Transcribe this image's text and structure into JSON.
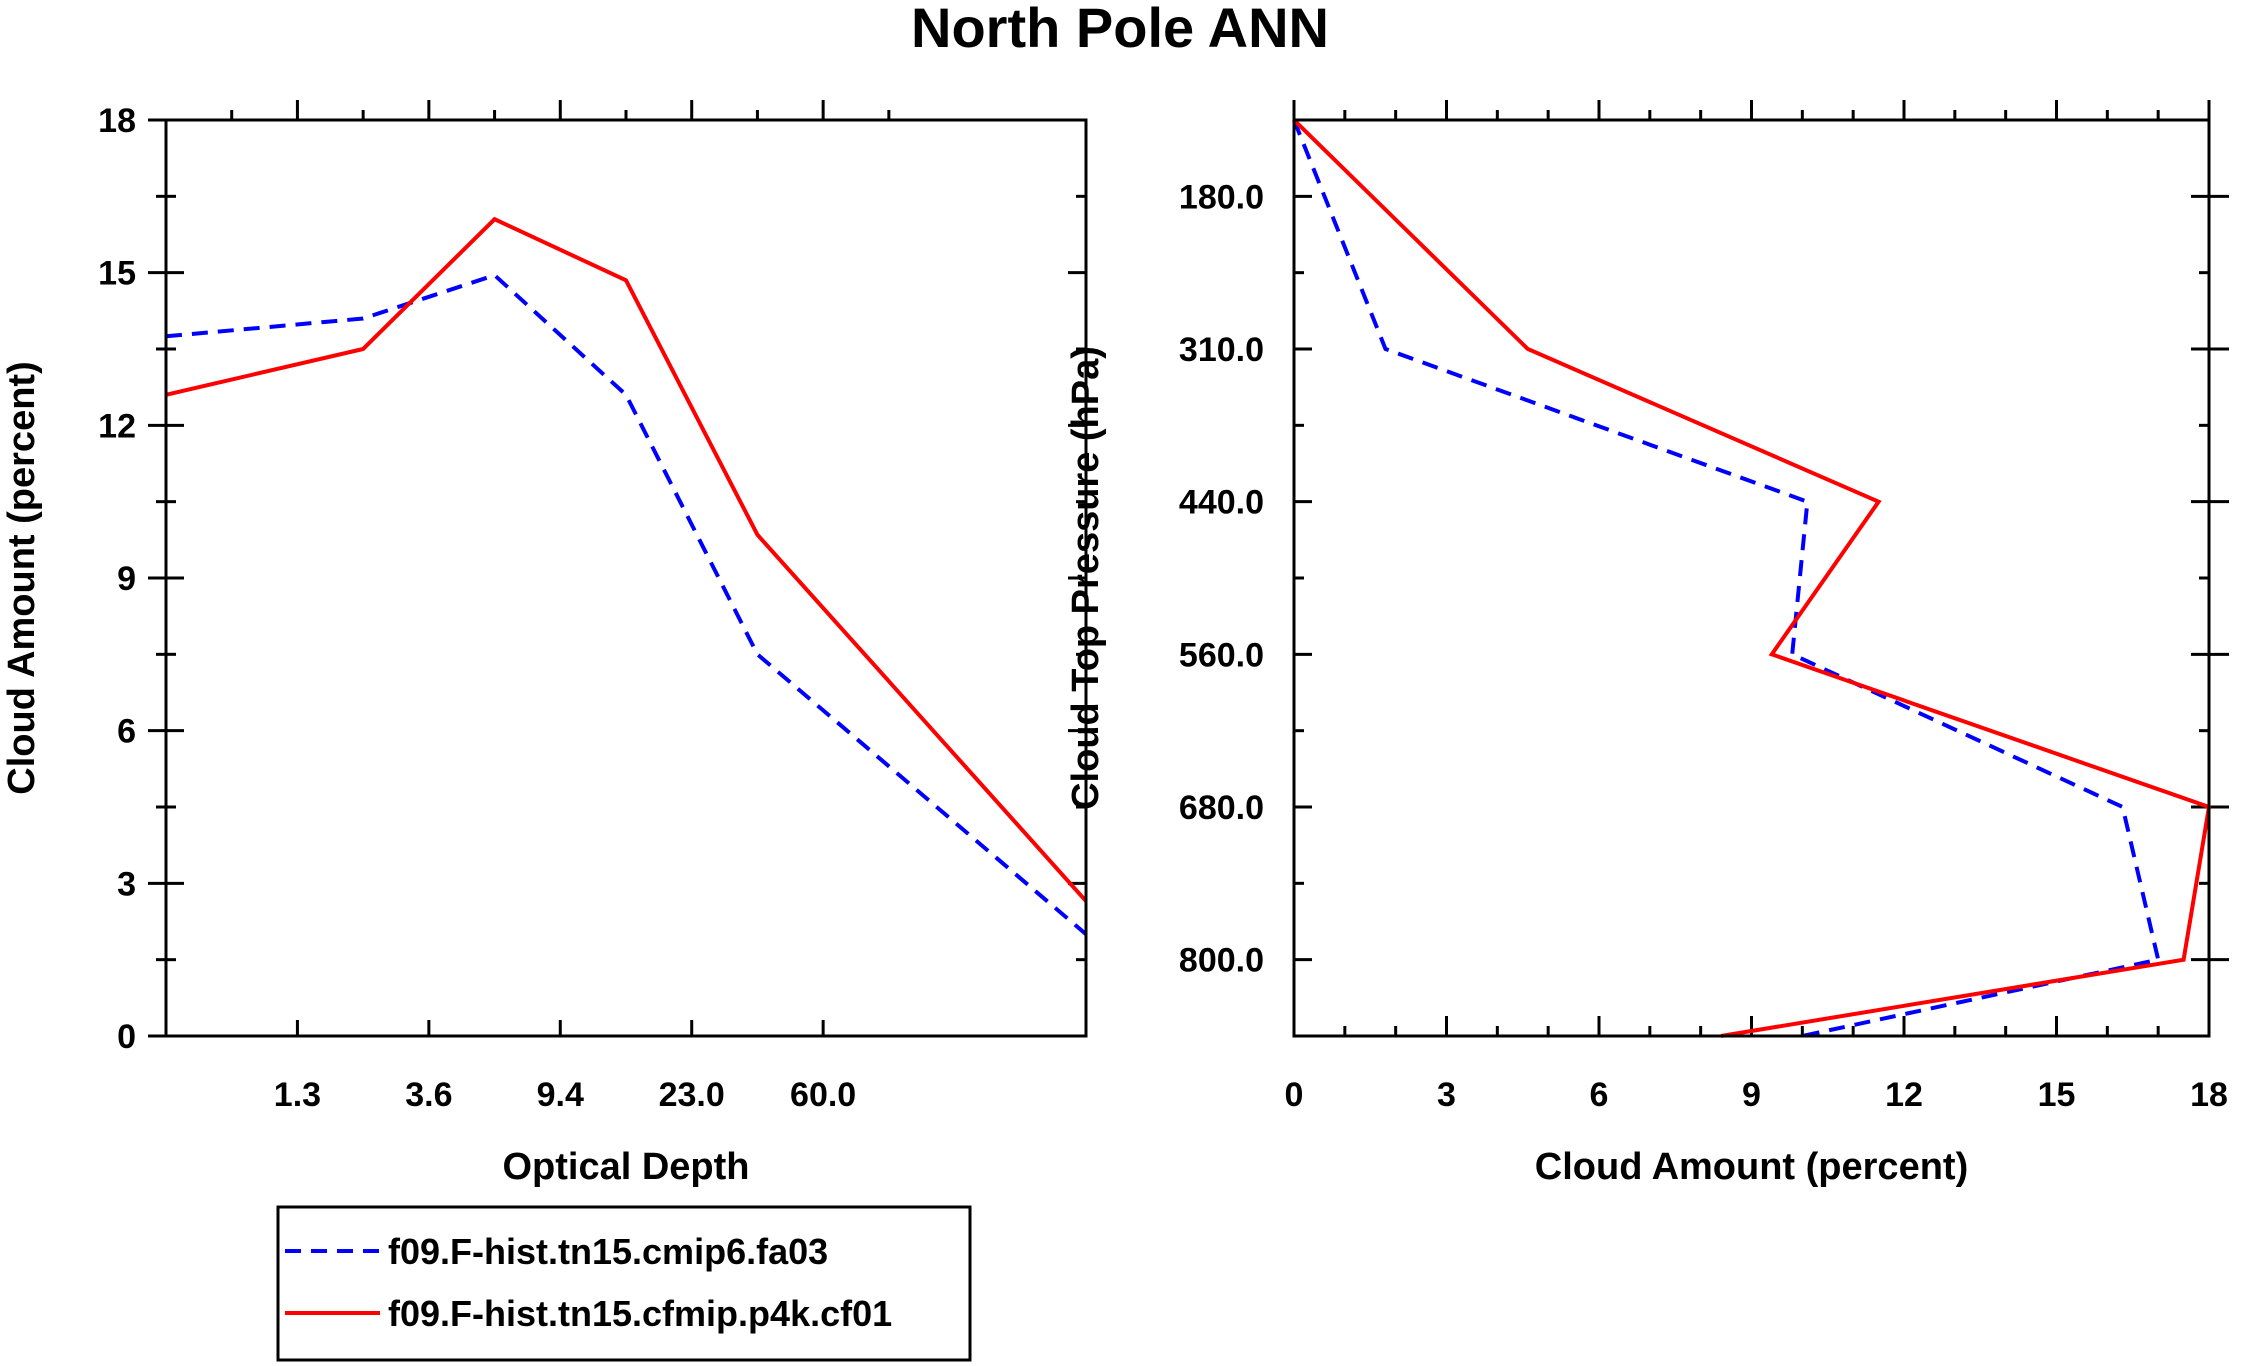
{
  "title": "North Pole ANN",
  "chart_data": [
    {
      "type": "line",
      "xlabel": "Optical Depth",
      "ylabel": "Cloud Amount (percent)",
      "x_bins": 7,
      "x_tick_labels": [
        "1.3",
        "3.6",
        "9.4",
        "23.0",
        "60.0"
      ],
      "y_ticks": [
        "0",
        "3",
        "6",
        "9",
        "12",
        "15",
        "18"
      ],
      "ylim": [
        0,
        18
      ],
      "series": [
        {
          "name": "f09.F-hist.tn15.cmip6.fa03",
          "style": "dashed",
          "color": "#0000ff",
          "values": [
            13.75,
            14.1,
            14.95,
            12.6,
            7.5,
            2.0
          ]
        },
        {
          "name": "f09.F-hist.tn15.cfmip.p4k.cf01",
          "style": "solid",
          "color": "#ff0000",
          "values": [
            12.6,
            13.5,
            16.05,
            14.85,
            9.85,
            2.65
          ]
        }
      ]
    },
    {
      "type": "line",
      "xlabel": "Cloud Amount (percent)",
      "ylabel": "Cloud Top Pressure (hPa)",
      "x_ticks": [
        "0",
        "3",
        "6",
        "9",
        "12",
        "15",
        "18"
      ],
      "xlim": [
        0,
        18
      ],
      "y_bins": 7,
      "y_tick_labels": [
        "180.0",
        "310.0",
        "440.0",
        "560.0",
        "680.0",
        "800.0"
      ],
      "series": [
        {
          "name": "f09.F-hist.tn15.cmip6.fa03",
          "style": "dashed",
          "color": "#0000ff",
          "values": [
            0.0,
            1.8,
            10.1,
            9.8,
            16.3,
            17.0,
            10.0
          ]
        },
        {
          "name": "f09.F-hist.tn15.cfmip.p4k.cf01",
          "style": "solid",
          "color": "#ff0000",
          "values": [
            0.0,
            4.6,
            11.5,
            9.4,
            18.0,
            17.5,
            8.4
          ]
        }
      ]
    }
  ],
  "legend": [
    {
      "label": "f09.F-hist.tn15.cmip6.fa03",
      "style": "dashed",
      "color": "#0000ff"
    },
    {
      "label": "f09.F-hist.tn15.cfmip.p4k.cf01",
      "style": "solid",
      "color": "#ff0000"
    }
  ]
}
